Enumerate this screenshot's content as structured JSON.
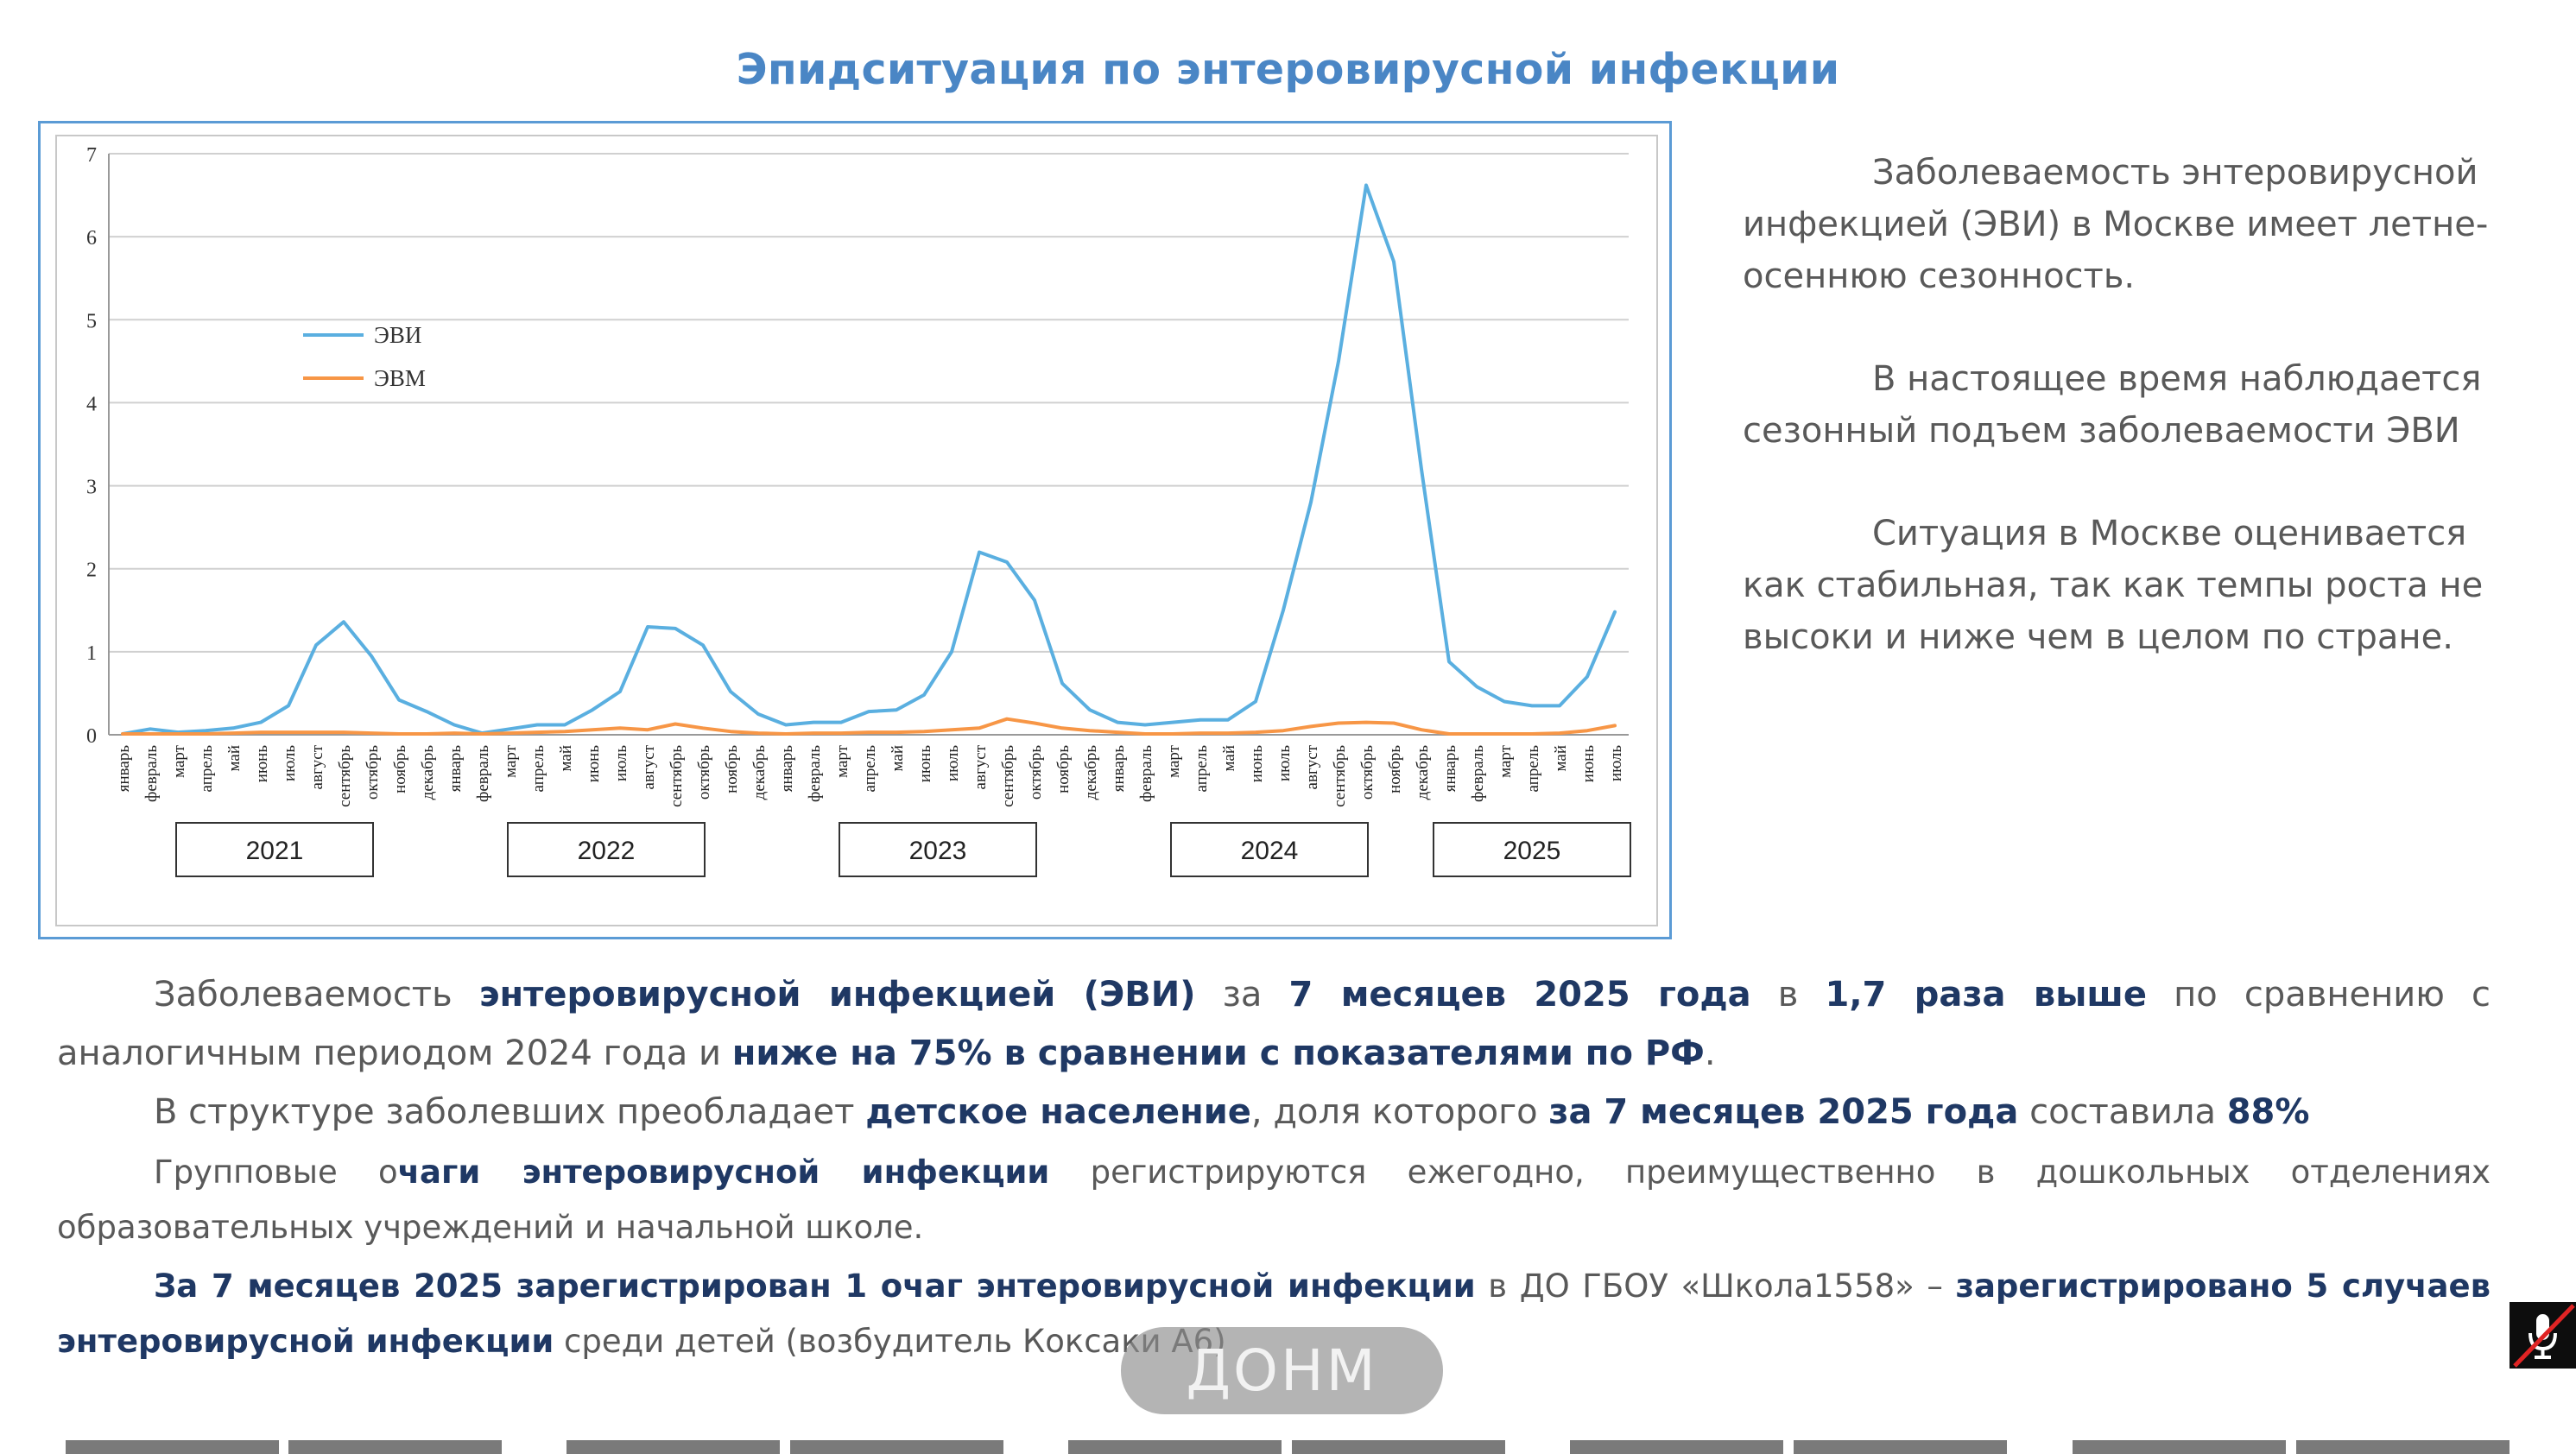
{
  "page": {
    "title": "Эпидситуация по энтеровирусной инфекции",
    "side_paragraphs": [
      "Заболеваемость энтеровирусной инфекцией (ЭВИ) в Москве имеет летне-осеннюю сезонность.",
      "В настоящее время наблюдается сезонный подъем заболеваемости ЭВИ",
      "Ситуация в Москве оценивается как стабильная, так как темпы роста не высоки и ниже чем в целом по стране."
    ],
    "p1": {
      "a": "Заболеваемость ",
      "b": "энтеровирусной инфекцией (ЭВИ)",
      "c": " за ",
      "d": "7 месяцев 2025 года",
      "e": " в ",
      "f": "1,7 раза выше",
      "g": " по сравнению с аналогичным периодом 2024 года и ",
      "h": "ниже на 75% в сравнении с показателями по РФ",
      "i": "."
    },
    "p2": {
      "a": "В структуре заболевших преобладает ",
      "b": "детское население",
      "c": ", доля которого ",
      "d": "за 7 месяцев 2025 года",
      "e": " составила ",
      "f": "88%"
    },
    "p3": {
      "a": "Групповые о",
      "b": "чаги энтеровирусной инфекции",
      "c": " регистрируются ежегодно, преимущественно в дошкольных отделениях образовательных учреждений и начальной школе."
    },
    "p4": {
      "a": "За 7 месяцев 2025  зарегистрирован 1 очаг энтеровирусной инфекции",
      "b": " в ДО ГБОУ «Школа1558» – ",
      "c": "зарегистрировано 5 случаев энтеровирусной инфекции",
      "d": " среди детей (возбудитель Коксаки А6)"
    },
    "watermark": "ДОНМ",
    "mic_icon": "muted-microphone-icon"
  },
  "chart_data": {
    "type": "line",
    "title": "",
    "ylim": [
      0,
      7
    ],
    "yticks": [
      0,
      1,
      2,
      3,
      4,
      5,
      6,
      7
    ],
    "grid": true,
    "legend_position": "upper-left",
    "colors": {
      "ЭВИ": "#5aafe0",
      "ЭВМ": "#f79646"
    },
    "categories": [
      "январь",
      "февраль",
      "март",
      "апрель",
      "май",
      "июнь",
      "июль",
      "август",
      "сентябрь",
      "октябрь",
      "ноябрь",
      "декабрь",
      "январь",
      "февраль",
      "март",
      "апрель",
      "май",
      "июнь",
      "июль",
      "август",
      "сентябрь",
      "октябрь",
      "ноябрь",
      "декабрь",
      "январь",
      "февраль",
      "март",
      "апрель",
      "май",
      "июнь",
      "июль",
      "август",
      "сентябрь",
      "октябрь",
      "ноябрь",
      "декабрь",
      "январь",
      "февраль",
      "март",
      "апрель",
      "май",
      "июнь",
      "июль",
      "август",
      "сентябрь",
      "октябрь",
      "ноябрь",
      "декабрь",
      "январь",
      "февраль",
      "март",
      "апрель",
      "май",
      "июнь",
      "июль"
    ],
    "year_groups": [
      {
        "label": "2021",
        "start": 0,
        "end": 11
      },
      {
        "label": "2022",
        "start": 12,
        "end": 23
      },
      {
        "label": "2023",
        "start": 24,
        "end": 35
      },
      {
        "label": "2024",
        "start": 36,
        "end": 47
      },
      {
        "label": "2025",
        "start": 48,
        "end": 54
      }
    ],
    "series": [
      {
        "name": "ЭВИ",
        "values": [
          0.01,
          0.07,
          0.03,
          0.05,
          0.08,
          0.15,
          0.35,
          1.08,
          1.36,
          0.95,
          0.42,
          0.28,
          0.12,
          0.02,
          0.07,
          0.12,
          0.12,
          0.3,
          0.52,
          1.3,
          1.28,
          1.08,
          0.52,
          0.25,
          0.12,
          0.15,
          0.15,
          0.28,
          0.3,
          0.48,
          1.0,
          2.2,
          2.08,
          1.62,
          0.62,
          0.3,
          0.15,
          0.12,
          0.15,
          0.18,
          0.18,
          0.4,
          1.5,
          2.8,
          4.5,
          6.62,
          5.7,
          3.2,
          0.88,
          0.58,
          0.4,
          0.35,
          0.35,
          0.7,
          1.48
        ]
      },
      {
        "name": "ЭВМ",
        "values": [
          0.01,
          0.01,
          0.01,
          0.01,
          0.02,
          0.03,
          0.03,
          0.03,
          0.03,
          0.02,
          0.01,
          0.01,
          0.02,
          0.01,
          0.02,
          0.03,
          0.04,
          0.06,
          0.08,
          0.06,
          0.13,
          0.08,
          0.04,
          0.02,
          0.01,
          0.02,
          0.02,
          0.03,
          0.03,
          0.04,
          0.06,
          0.08,
          0.19,
          0.14,
          0.08,
          0.05,
          0.03,
          0.01,
          0.01,
          0.02,
          0.02,
          0.03,
          0.05,
          0.1,
          0.14,
          0.15,
          0.14,
          0.06,
          0.01,
          0.01,
          0.01,
          0.01,
          0.02,
          0.05,
          0.11
        ]
      }
    ]
  }
}
